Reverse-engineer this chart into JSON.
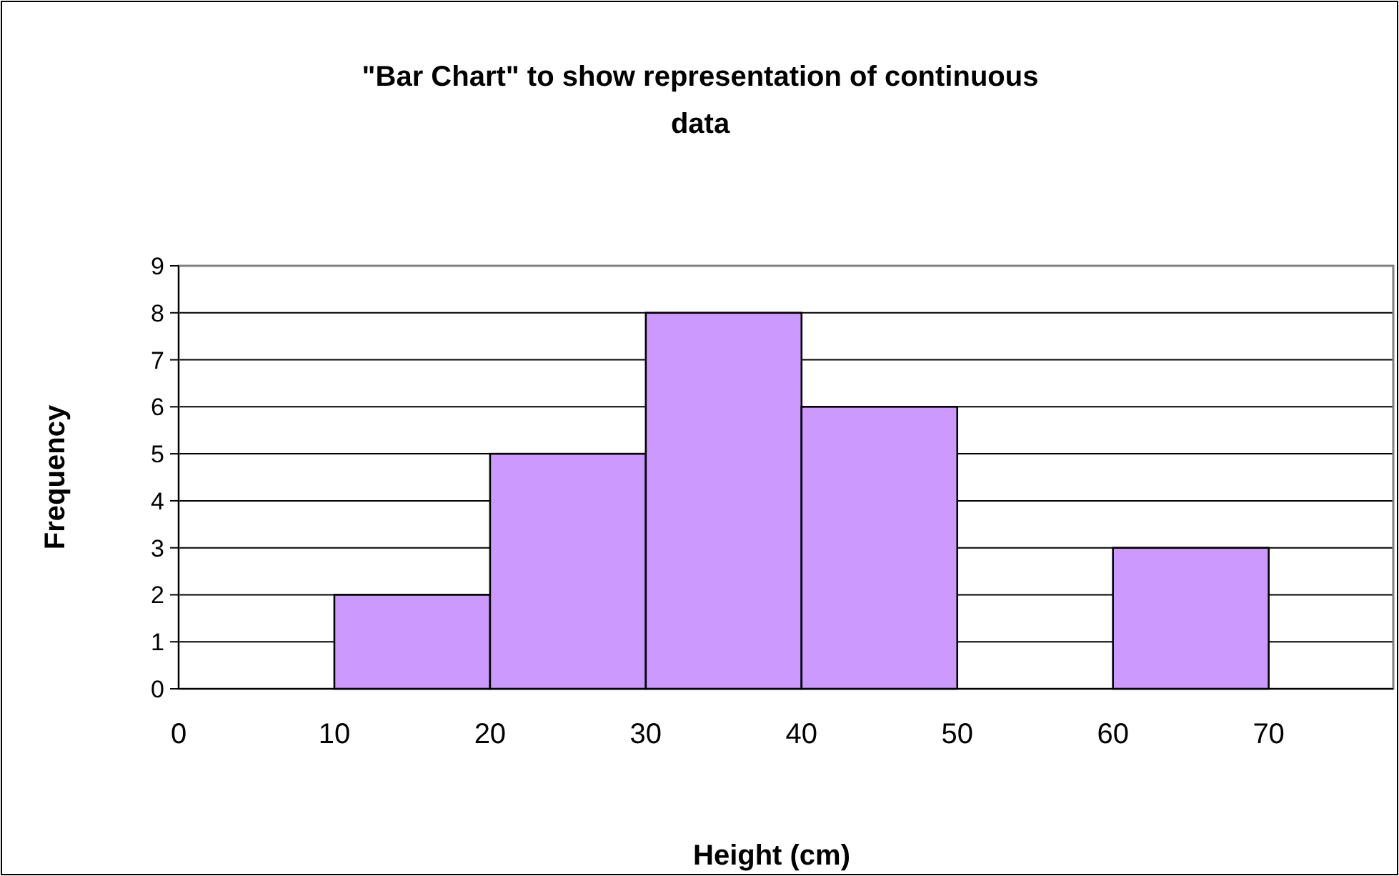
{
  "chart_data": {
    "type": "histogram",
    "title": "\"Bar Chart\" to show representation of continuous data",
    "xlabel": "Height (cm)",
    "ylabel": "Frequency",
    "bins": [
      10,
      20,
      30,
      40,
      50,
      60,
      70
    ],
    "values": [
      2,
      5,
      8,
      6,
      0,
      3
    ],
    "color": "#cc99ff",
    "xlim": [
      0,
      78
    ],
    "xticks": [
      0,
      10,
      20,
      30,
      40,
      50,
      60,
      70
    ],
    "ylim": [
      0,
      9
    ],
    "yticks": [
      0,
      1,
      2,
      3,
      4,
      5,
      6,
      7,
      8,
      9
    ],
    "grid": "y"
  }
}
